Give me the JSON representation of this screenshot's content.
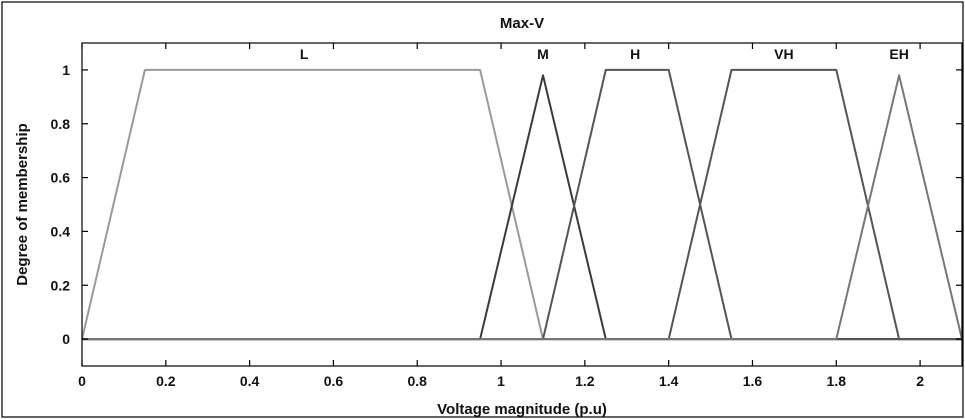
{
  "chart_data": {
    "type": "line",
    "title": "Max-V",
    "xlabel": "Voltage magnitude  (p.u)",
    "ylabel": "Degree of membership",
    "xlim": [
      0,
      2.1
    ],
    "ylim": [
      -0.1,
      1.1
    ],
    "xticks": [
      0,
      0.2,
      0.4,
      0.6,
      0.8,
      1,
      1.2,
      1.4,
      1.6,
      1.8,
      2
    ],
    "xtick_labels": [
      "0",
      "0.2",
      "0.4",
      "0.6",
      "0.8",
      "1",
      "1.2",
      "1.4",
      "1.6",
      "1.8",
      "2"
    ],
    "yticks": [
      0,
      0.2,
      0.4,
      0.6,
      0.8,
      1
    ],
    "ytick_labels": [
      "0",
      "0.2",
      "0.4",
      "0.6",
      "0.8",
      "1"
    ],
    "grid": false,
    "legend": "none",
    "series": [
      {
        "name": "L",
        "color": "#9a9a9a",
        "label_at": [
          0.53,
          1.04
        ],
        "x": [
          0,
          0.15,
          0.95,
          1.1,
          2.1
        ],
        "y": [
          0,
          1,
          1,
          0,
          0
        ]
      },
      {
        "name": "M",
        "color": "#3a3a3a",
        "label_at": [
          1.1,
          1.04
        ],
        "x": [
          0,
          0.95,
          1.1,
          1.25,
          2.1
        ],
        "y": [
          0,
          0,
          0.98,
          0,
          0
        ]
      },
      {
        "name": "H",
        "color": "#555555",
        "label_at": [
          1.32,
          1.04
        ],
        "x": [
          0,
          1.1,
          1.25,
          1.4,
          1.55,
          2.1
        ],
        "y": [
          0,
          0,
          1,
          1,
          0,
          0
        ]
      },
      {
        "name": "VH",
        "color": "#555555",
        "label_at": [
          1.675,
          1.04
        ],
        "x": [
          0,
          1.4,
          1.55,
          1.8,
          1.95,
          2.1
        ],
        "y": [
          0,
          0,
          1,
          1,
          0,
          0
        ]
      },
      {
        "name": "EH",
        "color": "#777777",
        "label_at": [
          1.95,
          1.04
        ],
        "x": [
          0,
          1.8,
          1.95,
          2.1
        ],
        "y": [
          0,
          0,
          0.98,
          0
        ]
      }
    ]
  }
}
